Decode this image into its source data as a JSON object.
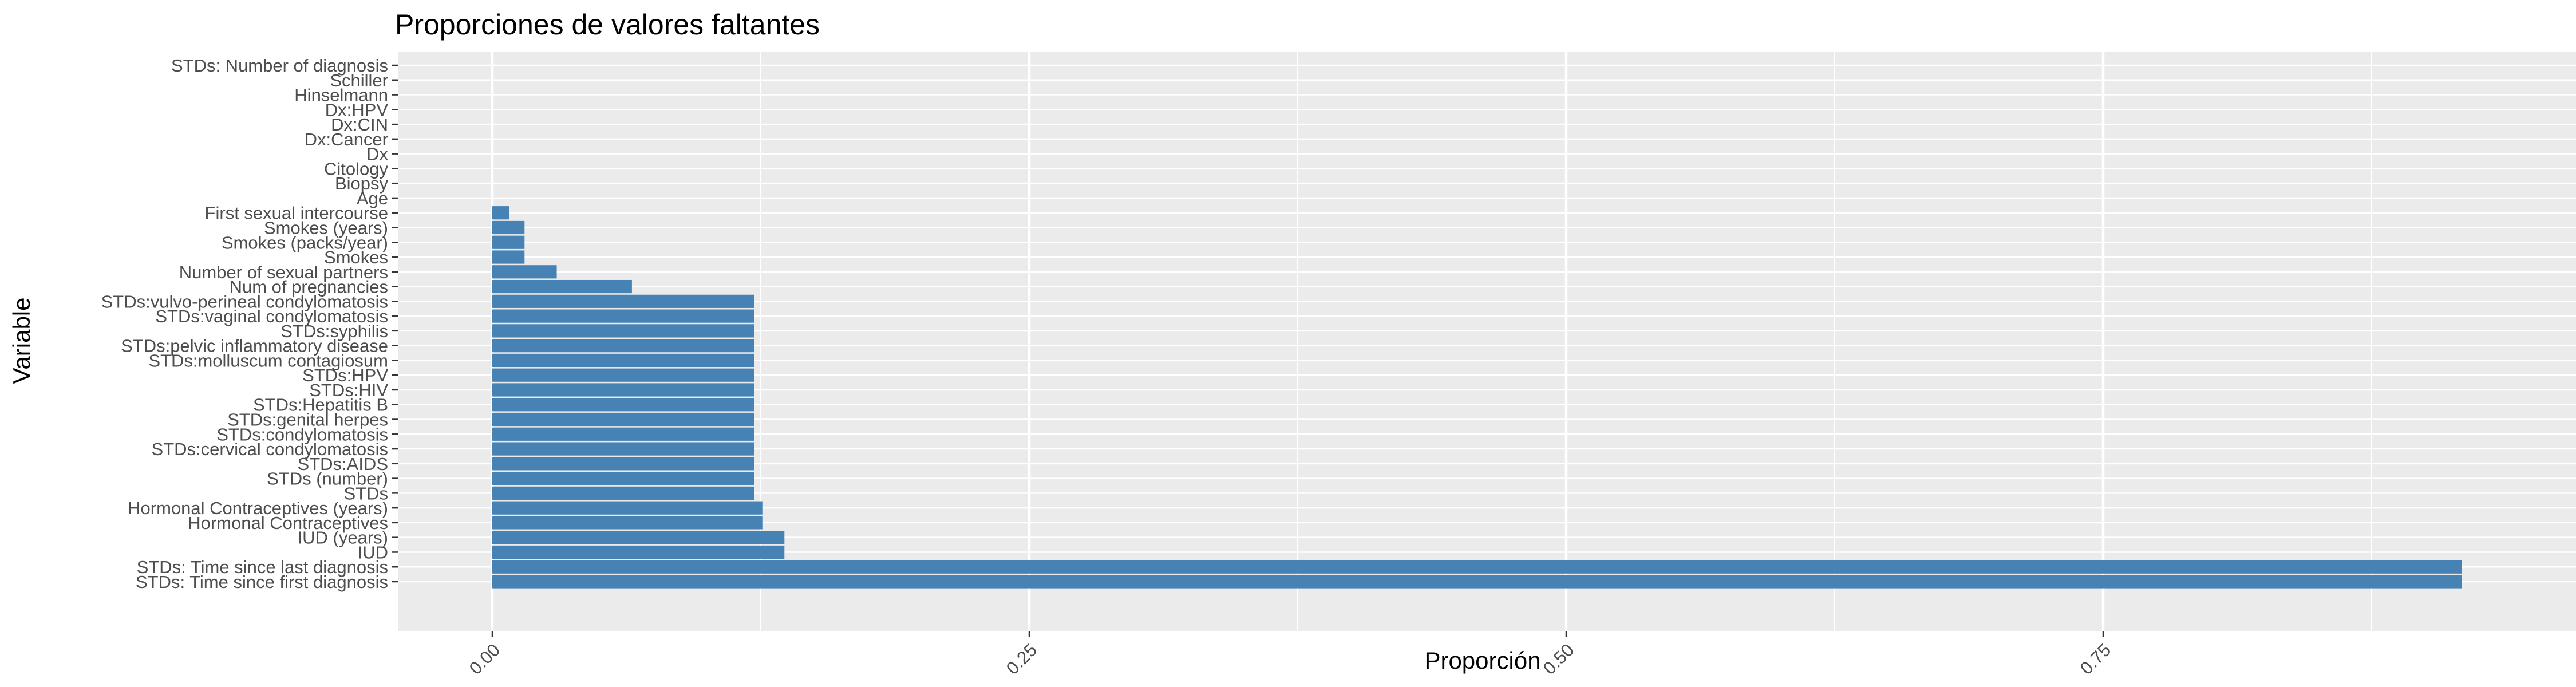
{
  "chart_data": {
    "type": "bar",
    "orientation": "horizontal",
    "title": "Proporciones de valores faltantes",
    "xlabel": "Proporción",
    "ylabel": "Variable",
    "xlim": [
      0,
      0.95
    ],
    "x_ticks": [
      0,
      0.25,
      0.5,
      0.75
    ],
    "x_tick_labels": [
      "0.00",
      "0.25",
      "0.50",
      "0.75"
    ],
    "bar_color": "#4682b4",
    "panel_color": "#ebebeb",
    "grid_color": "#ffffff",
    "categories": [
      "STDs: Number of diagnosis",
      "Schiller",
      "Hinselmann",
      "Dx:HPV",
      "Dx:CIN",
      "Dx:Cancer",
      "Dx",
      "Citology",
      "Biopsy",
      "Age",
      "First sexual intercourse",
      "Smokes (years)",
      "Smokes (packs/year)",
      "Smokes",
      "Number of sexual partners",
      "Num of pregnancies",
      "STDs:vulvo-perineal condylomatosis",
      "STDs:vaginal condylomatosis",
      "STDs:syphilis",
      "STDs:pelvic inflammatory disease",
      "STDs:molluscum contagiosum",
      "STDs:HPV",
      "STDs:HIV",
      "STDs:Hepatitis B",
      "STDs:genital herpes",
      "STDs:condylomatosis",
      "STDs:cervical condylomatosis",
      "STDs:AIDS",
      "STDs (number)",
      "STDs",
      "Hormonal Contraceptives (years)",
      "Hormonal Contraceptives",
      "IUD (years)",
      "IUD",
      "STDs: Time since last diagnosis",
      "STDs: Time since first diagnosis"
    ],
    "values": [
      0,
      0,
      0,
      0,
      0,
      0,
      0,
      0,
      0,
      0,
      0.008,
      0.015,
      0.015,
      0.015,
      0.03,
      0.065,
      0.122,
      0.122,
      0.122,
      0.122,
      0.122,
      0.122,
      0.122,
      0.122,
      0.122,
      0.122,
      0.122,
      0.122,
      0.122,
      0.122,
      0.126,
      0.126,
      0.136,
      0.136,
      0.917,
      0.917
    ]
  }
}
